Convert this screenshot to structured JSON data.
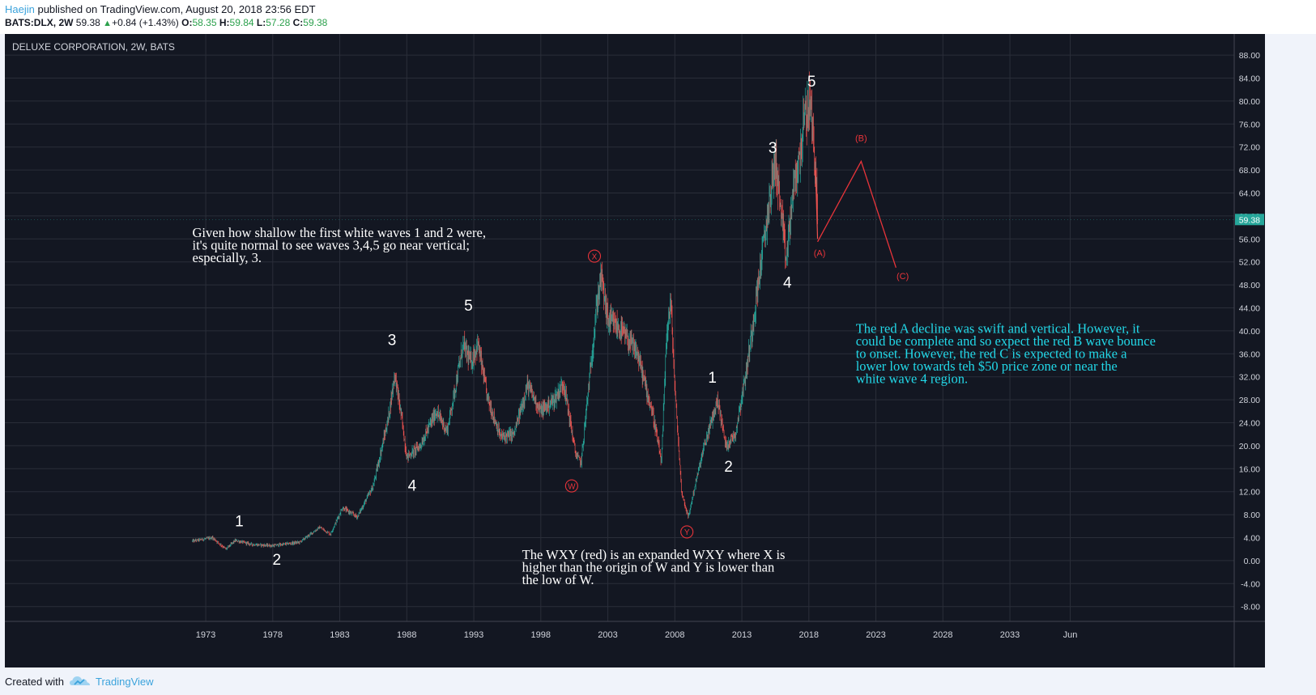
{
  "header": {
    "author": "Haejin",
    "published_text": " published on TradingView.com, August 20, 2018 23:56 EDT",
    "symbol": "BATS:DLX, 2W",
    "last": "59.38",
    "change": "+0.84 (+1.43%)",
    "o_label": "O:",
    "o": "58.35",
    "h_label": "H:",
    "h": "59.84",
    "l_label": "L:",
    "l": "57.28",
    "c_label": "C:",
    "c": "59.38"
  },
  "footer": {
    "created_with": "Created with",
    "brand": "TradingView"
  },
  "chart_data": {
    "type": "candlestick",
    "title": "DELUXE CORPORATION, 2W, BATS",
    "xlabel": "",
    "ylabel": "",
    "ylim": [
      -10,
      90
    ],
    "y_ticks": [
      88,
      84,
      80,
      76,
      72,
      68,
      64,
      60,
      56,
      52,
      48,
      44,
      40,
      36,
      32,
      28,
      24,
      20,
      16,
      12,
      8,
      4,
      0,
      -4,
      -8
    ],
    "y_tick_labels": [
      "88.00",
      "84.00",
      "80.00",
      "76.00",
      "72.00",
      "68.00",
      "64.00",
      "60.00",
      "56.00",
      "52.00",
      "48.00",
      "44.00",
      "40.00",
      "36.00",
      "32.00",
      "28.00",
      "24.00",
      "20.00",
      "16.00",
      "12.00",
      "8.00",
      "4.00",
      "0.00",
      "-4.00",
      "-8.00"
    ],
    "x_ticks": [
      1973,
      1978,
      1983,
      1988,
      1993,
      1998,
      2003,
      2008,
      2013,
      2018,
      2023,
      2028,
      2033,
      2037.5
    ],
    "x_tick_labels": [
      "1973",
      "1978",
      "1983",
      "1988",
      "1993",
      "1998",
      "2003",
      "2008",
      "2013",
      "2018",
      "2023",
      "2028",
      "2033",
      "Jun"
    ],
    "xlim": [
      1971.3,
      2050
    ],
    "last_price_label": "59.38",
    "grid": true,
    "series": [
      {
        "points": [
          [
            1972.0,
            3.4
          ],
          [
            1973.5,
            4.0
          ],
          [
            1974.5,
            2.0
          ],
          [
            1975.2,
            3.5
          ],
          [
            1976.5,
            2.8
          ],
          [
            1978.0,
            2.6
          ],
          [
            1980.0,
            3.2
          ],
          [
            1981.5,
            5.8
          ],
          [
            1982.3,
            4.6
          ],
          [
            1983.2,
            9.2
          ],
          [
            1984.3,
            7.6
          ],
          [
            1985.5,
            13.0
          ],
          [
            1986.6,
            24.5
          ],
          [
            1987.1,
            32.5
          ],
          [
            1987.6,
            25.0
          ],
          [
            1988.0,
            18.0
          ],
          [
            1989.0,
            20.0
          ],
          [
            1990.2,
            26.0
          ],
          [
            1991.0,
            22.5
          ],
          [
            1992.2,
            37.5
          ],
          [
            1992.8,
            34.5
          ],
          [
            1993.3,
            37.8
          ],
          [
            1994.0,
            28.5
          ],
          [
            1995.0,
            21.5
          ],
          [
            1996.0,
            22.0
          ],
          [
            1997.0,
            30.5
          ],
          [
            1998.0,
            26.0
          ],
          [
            1999.0,
            28.0
          ],
          [
            1999.7,
            31.0
          ],
          [
            2000.6,
            18.5
          ],
          [
            2001.0,
            17.0
          ],
          [
            2002.2,
            45.0
          ],
          [
            2002.5,
            49.5
          ],
          [
            2003.0,
            42.0
          ],
          [
            2004.0,
            40.0
          ],
          [
            2005.2,
            36.0
          ],
          [
            2006.4,
            25.0
          ],
          [
            2007.0,
            17.0
          ],
          [
            2007.4,
            40.0
          ],
          [
            2007.7,
            45.0
          ],
          [
            2008.0,
            30.0
          ],
          [
            2008.5,
            12.0
          ],
          [
            2009.0,
            7.5
          ],
          [
            2009.5,
            13.0
          ],
          [
            2010.2,
            20.0
          ],
          [
            2011.2,
            28.0
          ],
          [
            2011.8,
            20.0
          ],
          [
            2012.5,
            22.0
          ],
          [
            2013.4,
            34.0
          ],
          [
            2014.2,
            48.0
          ],
          [
            2014.9,
            60.0
          ],
          [
            2015.5,
            70.0
          ],
          [
            2016.3,
            52.0
          ],
          [
            2016.8,
            64.0
          ],
          [
            2017.3,
            70.0
          ],
          [
            2017.6,
            76.0
          ],
          [
            2018.1,
            80.0
          ],
          [
            2018.5,
            68.0
          ],
          [
            2018.65,
            59.38
          ]
        ]
      }
    ],
    "wave_labels_white": [
      {
        "text": "1",
        "x": 1975.5,
        "y": 6.0
      },
      {
        "text": "2",
        "x": 1978.3,
        "y": -0.7
      },
      {
        "text": "3",
        "x": 1986.9,
        "y": 37.5
      },
      {
        "text": "4",
        "x": 1988.4,
        "y": 12.2
      },
      {
        "text": "5",
        "x": 1992.6,
        "y": 43.5
      },
      {
        "text": "1",
        "x": 2010.8,
        "y": 31.0
      },
      {
        "text": "2",
        "x": 2012.0,
        "y": 15.5
      },
      {
        "text": "3",
        "x": 2015.3,
        "y": 71.0
      },
      {
        "text": "4",
        "x": 2016.4,
        "y": 47.5
      },
      {
        "text": "5",
        "x": 2018.2,
        "y": 82.5
      }
    ],
    "wave_labels_red_circled": [
      {
        "text": "W",
        "x": 2000.3,
        "y": 13.0
      },
      {
        "text": "X",
        "x": 2002.0,
        "y": 53.0
      },
      {
        "text": "Y",
        "x": 2008.9,
        "y": 5.0
      }
    ],
    "projection_path": [
      [
        2018.65,
        55.5
      ],
      [
        2021.9,
        69.5
      ],
      [
        2024.5,
        51.0
      ]
    ],
    "projection_labels": [
      {
        "text": "(A)",
        "x": 2018.8,
        "y": 53.0
      },
      {
        "text": "(B)",
        "x": 2021.9,
        "y": 73.0
      },
      {
        "text": "(C)",
        "x": 2025.0,
        "y": 49.0
      }
    ],
    "annotations": [
      {
        "id": "note-shallow",
        "color": "#ffffff",
        "x": 1972.0,
        "y": 56.3,
        "lines": [
          "Given how shallow the first white waves 1 and 2 were,",
          "it's quite normal to see waves 3,4,5 go near vertical;",
          "especially, 3."
        ]
      },
      {
        "id": "note-wxy",
        "color": "#ffffff",
        "x": 1996.6,
        "y": 0.3,
        "lines": [
          "The WXY (red) is an expanded WXY where X is",
          "higher than the origin of W and Y is lower than",
          "the low of W."
        ]
      },
      {
        "id": "note-red-abc",
        "color": "#22d8e8",
        "x": 2021.5,
        "y": 39.6,
        "lines": [
          "The red A decline was swift and vertical. However, it",
          "could be complete and so expect the red B wave bounce",
          "to onset. However, the red C is expected to make a",
          "lower low towards teh $50 price zone or near the",
          "white wave 4 region."
        ]
      }
    ],
    "colors": {
      "background": "#131722",
      "grid": "#2a2e39",
      "up": "#26a69a",
      "down": "#ef5350",
      "red_wave": "#e8343a",
      "price_tag": "#26a69a"
    }
  }
}
